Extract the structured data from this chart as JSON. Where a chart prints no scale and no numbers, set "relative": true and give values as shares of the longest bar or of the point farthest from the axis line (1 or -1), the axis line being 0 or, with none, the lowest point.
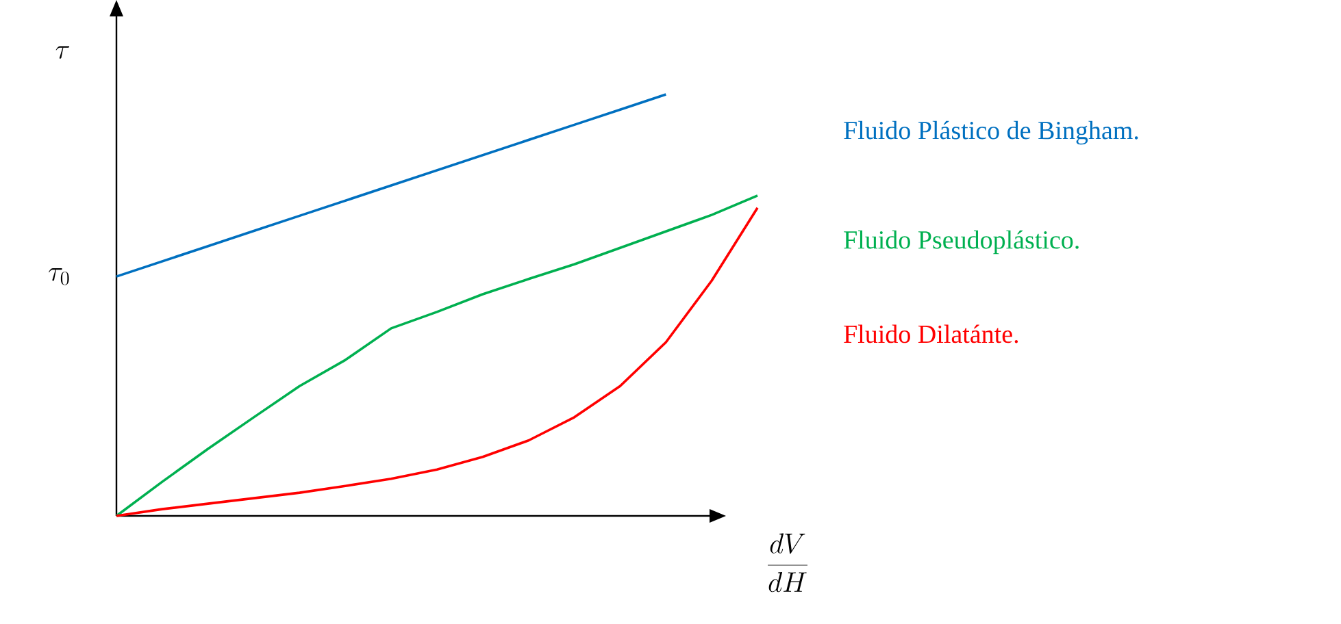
{
  "chart_data": {
    "type": "line",
    "relative": true,
    "xlabel": "\\frac{dV}{dH}",
    "ylabel": "\\tau",
    "annotations": [
      "\\tau_0"
    ],
    "marker": "none",
    "line_style": "solid",
    "categories": [
      null,
      null,
      null,
      null,
      null,
      null,
      null,
      null,
      null,
      null,
      null,
      null,
      null,
      null,
      null
    ],
    "series": [
      {
        "name": "Fluido Plástico de Bingham.",
        "color": "#0070c0",
        "values": [
          0.568,
          0.604,
          0.64,
          0.676,
          0.712,
          0.748,
          0.784,
          0.82,
          0.856,
          0.892,
          0.928,
          0.964,
          1.0,
          null,
          null
        ]
      },
      {
        "name": "Fluido Pseudoplástico.",
        "color": "#00b050",
        "values": [
          0,
          0.081,
          0.159,
          0.234,
          0.308,
          0.37,
          0.445,
          0.484,
          0.526,
          0.562,
          0.597,
          0.636,
          0.675,
          0.714,
          0.76
        ]
      },
      {
        "name": "Fluido Dilatánte.",
        "color": "#ff0000",
        "values": [
          0,
          0.016,
          0.029,
          0.042,
          0.055,
          0.071,
          0.088,
          0.11,
          0.14,
          0.179,
          0.234,
          0.308,
          0.412,
          0.558,
          0.731
        ]
      }
    ]
  }
}
